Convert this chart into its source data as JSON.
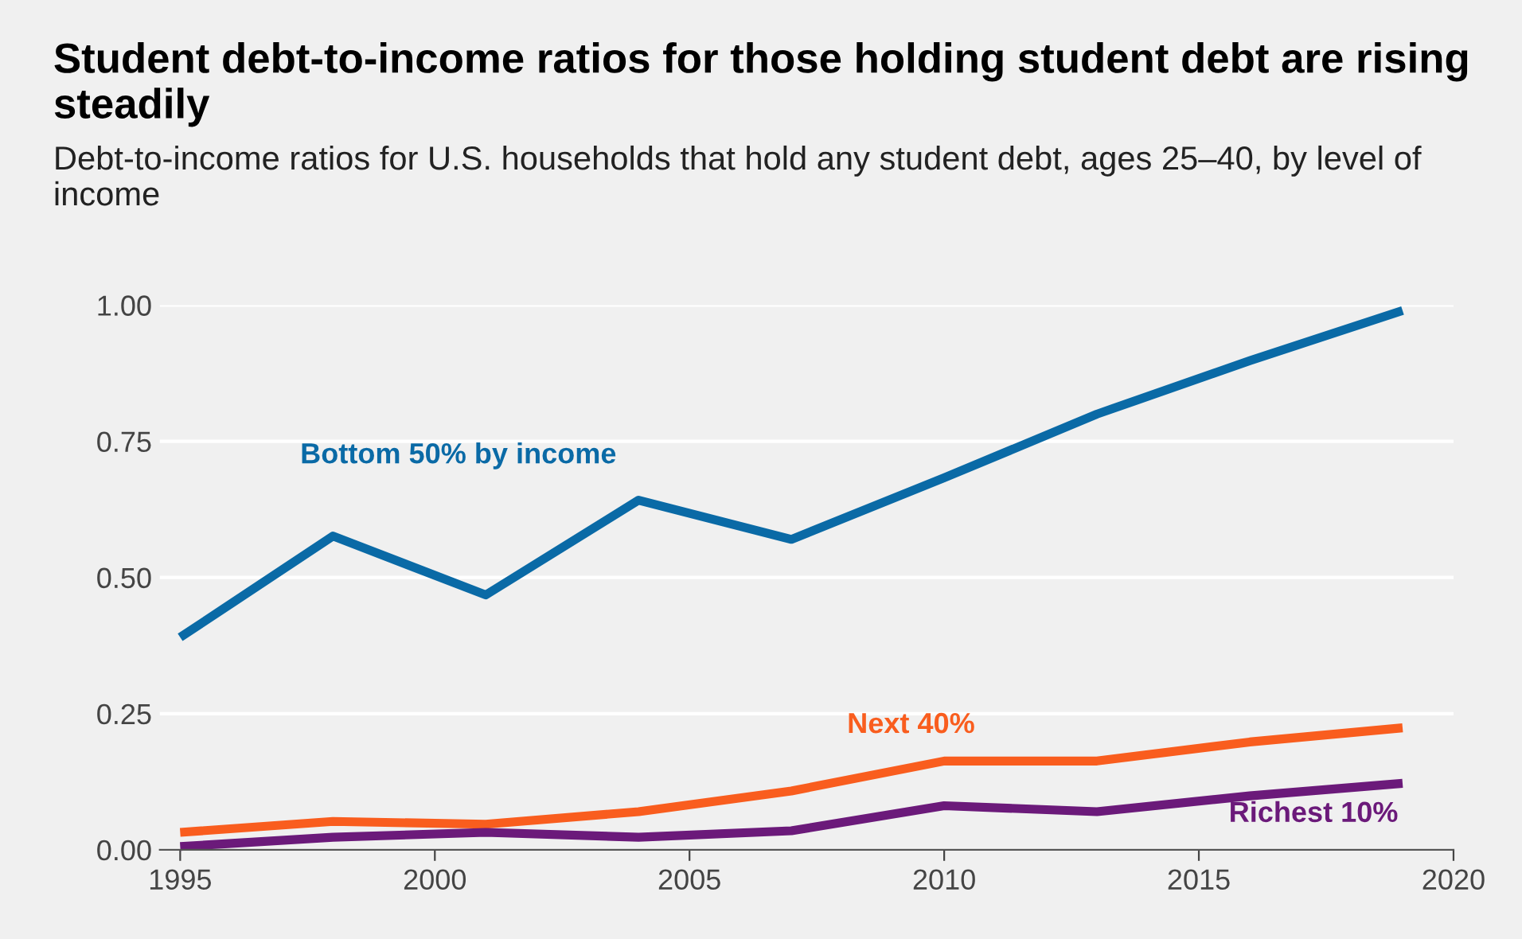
{
  "chart_data": {
    "type": "line",
    "title": "Student debt-to-income ratios for those holding student debt are rising steadily",
    "subtitle": "Debt-to-income ratios for U.S. households that hold any student debt, ages 25–40, by level of income",
    "x": [
      1995,
      1998,
      2001,
      2004,
      2007,
      2010,
      2013,
      2016,
      2019
    ],
    "series": [
      {
        "name": "Bottom 50% by income",
        "color": "#0a6aa6",
        "values": [
          0.39,
          0.576,
          0.468,
          0.642,
          0.57,
          0.683,
          0.8,
          0.898,
          0.99
        ]
      },
      {
        "name": "Next 40%",
        "color": "#f95d1e",
        "values": [
          0.032,
          0.052,
          0.047,
          0.07,
          0.108,
          0.163,
          0.163,
          0.198,
          0.224
        ]
      },
      {
        "name": "Richest 10%",
        "color": "#6b1a7a",
        "values": [
          0.006,
          0.023,
          0.032,
          0.023,
          0.035,
          0.081,
          0.07,
          0.099,
          0.122
        ]
      }
    ],
    "xlim": [
      1994.6,
      2020
    ],
    "xticks": [
      1995,
      2000,
      2005,
      2010,
      2015,
      2020
    ],
    "ylim": [
      0,
      1
    ],
    "yticks": [
      {
        "value": 0,
        "label": "0.00"
      },
      {
        "value": 0.25,
        "label": "0.25"
      },
      {
        "value": 0.5,
        "label": "0.50"
      },
      {
        "value": 0.75,
        "label": "0.75"
      },
      {
        "value": 1,
        "label": "1.00"
      }
    ],
    "grid": "y",
    "legend": false
  }
}
